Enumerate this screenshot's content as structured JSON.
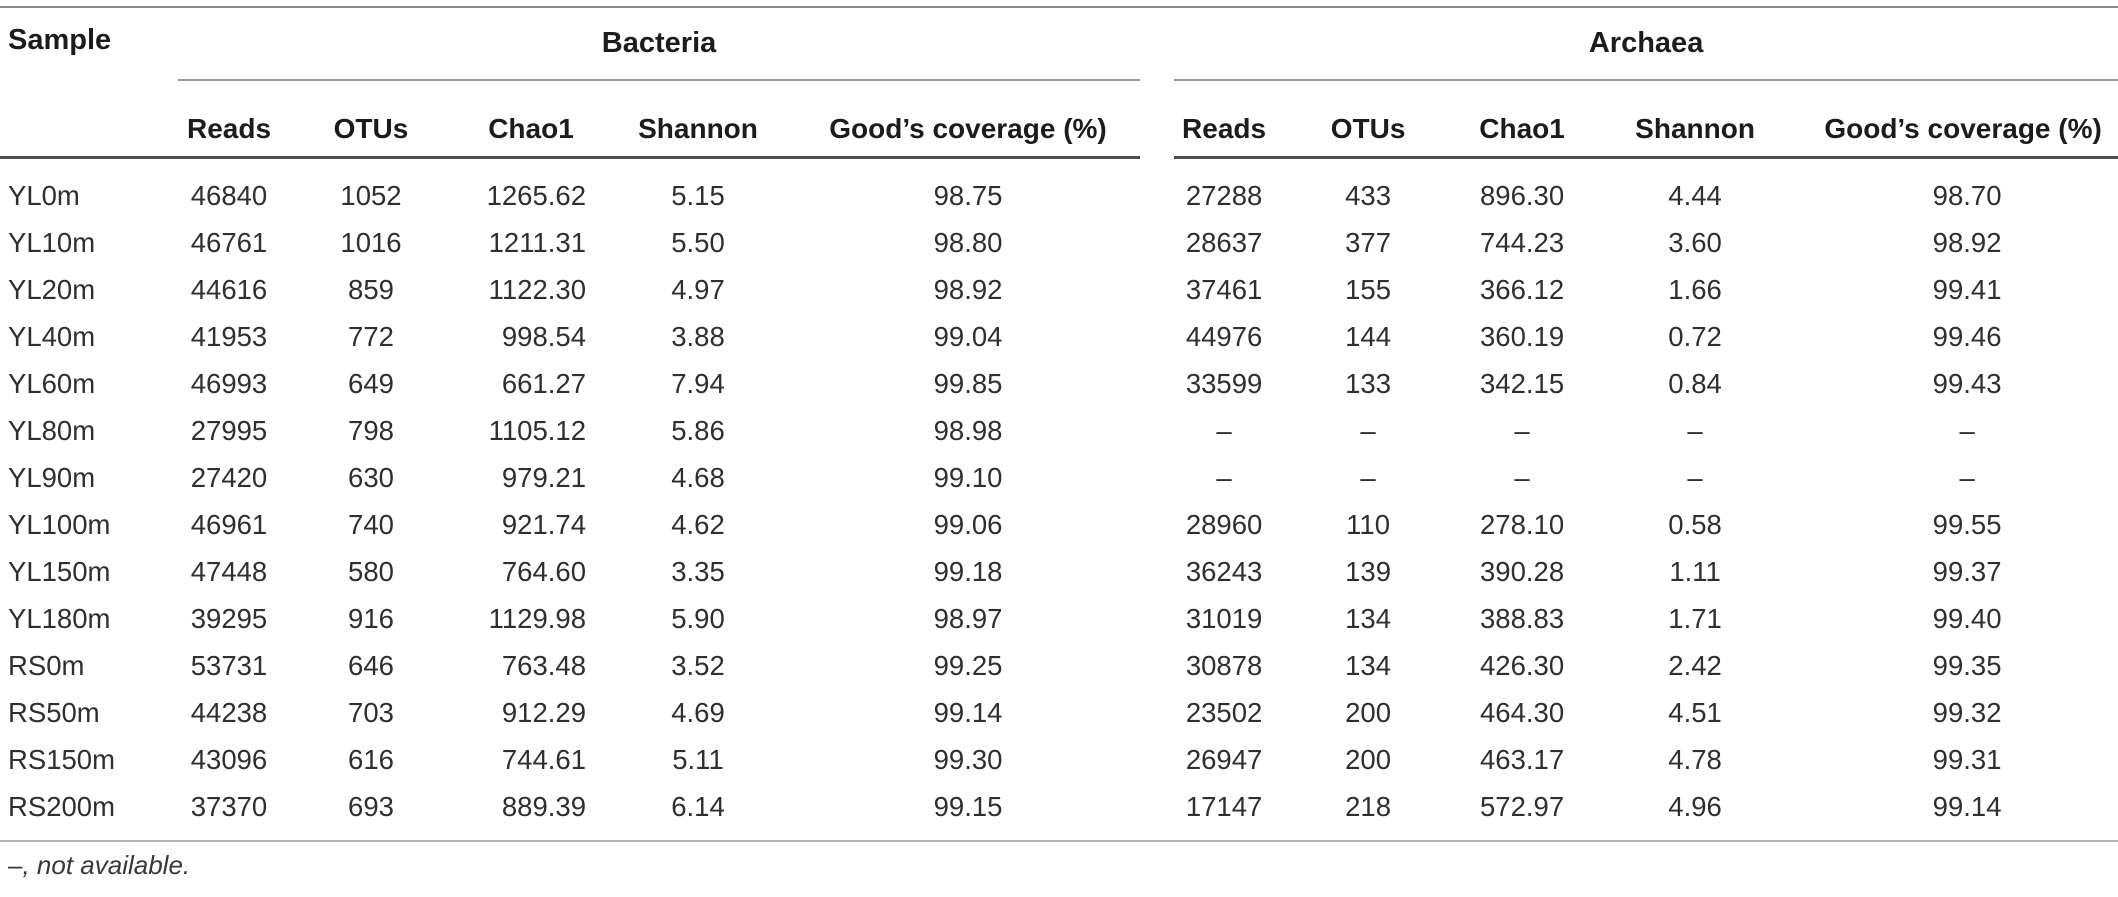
{
  "table": {
    "sample_header": "Sample",
    "groups": {
      "bacteria": "Bacteria",
      "archaea": "Archaea"
    },
    "columns": [
      "Reads",
      "OTUs",
      "Chao1",
      "Shannon",
      "Good’s coverage (%)"
    ],
    "rows": [
      {
        "sample": "YL0m",
        "bacteria": [
          "46840",
          "1052",
          "1265.62",
          "5.15",
          "98.75"
        ],
        "archaea": [
          "27288",
          "433",
          "896.30",
          "4.44",
          "98.70"
        ]
      },
      {
        "sample": "YL10m",
        "bacteria": [
          "46761",
          "1016",
          "1211.31",
          "5.50",
          "98.80"
        ],
        "archaea": [
          "28637",
          "377",
          "744.23",
          "3.60",
          "98.92"
        ]
      },
      {
        "sample": "YL20m",
        "bacteria": [
          "44616",
          "859",
          "1122.30",
          "4.97",
          "98.92"
        ],
        "archaea": [
          "37461",
          "155",
          "366.12",
          "1.66",
          "99.41"
        ]
      },
      {
        "sample": "YL40m",
        "bacteria": [
          "41953",
          "772",
          "998.54",
          "3.88",
          "99.04"
        ],
        "archaea": [
          "44976",
          "144",
          "360.19",
          "0.72",
          "99.46"
        ]
      },
      {
        "sample": "YL60m",
        "bacteria": [
          "46993",
          "649",
          "661.27",
          "7.94",
          "99.85"
        ],
        "archaea": [
          "33599",
          "133",
          "342.15",
          "0.84",
          "99.43"
        ]
      },
      {
        "sample": "YL80m",
        "bacteria": [
          "27995",
          "798",
          "1105.12",
          "5.86",
          "98.98"
        ],
        "archaea": [
          "–",
          "–",
          "–",
          "–",
          "–"
        ]
      },
      {
        "sample": "YL90m",
        "bacteria": [
          "27420",
          "630",
          "979.21",
          "4.68",
          "99.10"
        ],
        "archaea": [
          "–",
          "–",
          "–",
          "–",
          "–"
        ]
      },
      {
        "sample": "YL100m",
        "bacteria": [
          "46961",
          "740",
          "921.74",
          "4.62",
          "99.06"
        ],
        "archaea": [
          "28960",
          "110",
          "278.10",
          "0.58",
          "99.55"
        ]
      },
      {
        "sample": "YL150m",
        "bacteria": [
          "47448",
          "580",
          "764.60",
          "3.35",
          "99.18"
        ],
        "archaea": [
          "36243",
          "139",
          "390.28",
          "1.11",
          "99.37"
        ]
      },
      {
        "sample": "YL180m",
        "bacteria": [
          "39295",
          "916",
          "1129.98",
          "5.90",
          "98.97"
        ],
        "archaea": [
          "31019",
          "134",
          "388.83",
          "1.71",
          "99.40"
        ]
      },
      {
        "sample": "RS0m",
        "bacteria": [
          "53731",
          "646",
          "763.48",
          "3.52",
          "99.25"
        ],
        "archaea": [
          "30878",
          "134",
          "426.30",
          "2.42",
          "99.35"
        ]
      },
      {
        "sample": "RS50m",
        "bacteria": [
          "44238",
          "703",
          "912.29",
          "4.69",
          "99.14"
        ],
        "archaea": [
          "23502",
          "200",
          "464.30",
          "4.51",
          "99.32"
        ]
      },
      {
        "sample": "RS150m",
        "bacteria": [
          "43096",
          "616",
          "744.61",
          "5.11",
          "99.30"
        ],
        "archaea": [
          "26947",
          "200",
          "463.17",
          "4.78",
          "99.31"
        ]
      },
      {
        "sample": "RS200m",
        "bacteria": [
          "37370",
          "693",
          "889.39",
          "6.14",
          "99.15"
        ],
        "archaea": [
          "17147",
          "218",
          "572.97",
          "4.96",
          "99.14"
        ]
      }
    ],
    "footnote": "–, not available."
  }
}
